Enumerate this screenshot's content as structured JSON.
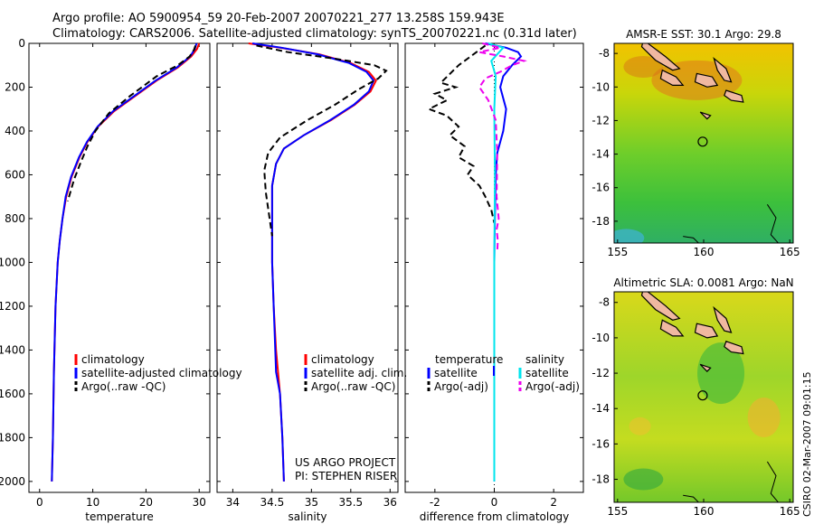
{
  "header": {
    "line1": "Argo profile: AO 5900954_59 20-Feb-2007 20070221_277 13.258S 159.943E",
    "line2": "Climatology: CARS2006. Satellite-adjusted climatology: synTS_20070221.nc (0.31d later)"
  },
  "stamp": "CSIRO 02-Mar-2007 09:01:15",
  "colors": {
    "clim": "#ff0000",
    "sat": "#0000ff",
    "argo": "#000000",
    "sal_sat": "#00e5ee",
    "sal_argo": "#ee00ee"
  },
  "chart_data": [
    {
      "type": "line",
      "name": "temperature",
      "xlabel": "temperature",
      "xlim": [
        -2,
        32
      ],
      "ylim": [
        0,
        2050
      ],
      "xticks": [
        "0",
        "10",
        "20",
        "30"
      ],
      "xtick_values": [
        0,
        10,
        20,
        30
      ],
      "yticks": [
        "0",
        "200",
        "400",
        "600",
        "800",
        "1000",
        "1200",
        "1400",
        "1600",
        "1800",
        "2000"
      ],
      "legend": [
        "climatology",
        "satellite-adjusted climatology",
        "Argo(..raw -QC)"
      ],
      "series": [
        {
          "name": "climatology",
          "style": "solid",
          "color": "#ff0000",
          "x": [
            30,
            29.6,
            28.5,
            26,
            22,
            18,
            14,
            11,
            9,
            7.5,
            6,
            5,
            4.3,
            3.8,
            3.4,
            3,
            2.7,
            2.5,
            2.3
          ],
          "y": [
            0,
            25,
            60,
            110,
            170,
            240,
            310,
            380,
            450,
            520,
            610,
            700,
            800,
            900,
            1000,
            1200,
            1500,
            1800,
            2000
          ]
        },
        {
          "name": "satellite-adjusted climatology",
          "style": "solid",
          "color": "#0000ff",
          "x": [
            29.5,
            29.2,
            28.3,
            25.8,
            21.8,
            17.8,
            13.8,
            10.9,
            8.9,
            7.4,
            5.9,
            4.9,
            4.3,
            3.8,
            3.4,
            3,
            2.7,
            2.5,
            2.3
          ],
          "y": [
            0,
            25,
            60,
            110,
            170,
            240,
            310,
            380,
            450,
            520,
            610,
            700,
            800,
            900,
            1000,
            1200,
            1500,
            1800,
            2000
          ]
        },
        {
          "name": "Argo(..raw -QC)",
          "style": "dashed",
          "color": "#000000",
          "x": [
            29.3,
            29,
            28.2,
            26,
            22,
            17,
            13,
            10.5,
            9,
            7.8,
            6.5,
            5.3
          ],
          "y": [
            10,
            30,
            60,
            100,
            150,
            240,
            320,
            400,
            470,
            540,
            620,
            720
          ]
        }
      ]
    },
    {
      "type": "line",
      "name": "salinity",
      "xlabel": "salinity",
      "xlim": [
        33.8,
        36.1
      ],
      "ylim": [
        0,
        2050
      ],
      "xticks": [
        "34",
        "34.5",
        "35",
        "35.5",
        "36"
      ],
      "xtick_values": [
        34,
        34.5,
        35,
        35.5,
        36
      ],
      "legend": [
        "climatology",
        "satellite adj. clim.",
        "Argo(..raw -QC)"
      ],
      "annotation": [
        "US ARGO PROJECT",
        "PI: STEPHEN RISER"
      ],
      "series": [
        {
          "name": "climatology",
          "style": "solid",
          "color": "#ff0000",
          "x": [
            34.2,
            34.6,
            35.1,
            35.5,
            35.73,
            35.82,
            35.75,
            35.55,
            35.25,
            34.9,
            34.65,
            34.55,
            34.5,
            34.5,
            34.5,
            34.52,
            34.55,
            34.6,
            34.63,
            34.65
          ],
          "y": [
            0,
            20,
            50,
            90,
            130,
            170,
            220,
            280,
            350,
            420,
            480,
            550,
            650,
            800,
            1000,
            1200,
            1400,
            1600,
            1800,
            2000
          ]
        },
        {
          "name": "satellite adj. clim.",
          "style": "solid",
          "color": "#0000ff",
          "x": [
            34.25,
            34.62,
            35.08,
            35.48,
            35.7,
            35.79,
            35.73,
            35.54,
            35.24,
            34.9,
            34.65,
            34.55,
            34.5,
            34.5,
            34.5,
            34.52,
            34.55,
            34.6,
            34.63,
            34.65
          ],
          "y": [
            0,
            20,
            50,
            90,
            130,
            170,
            220,
            280,
            350,
            420,
            480,
            550,
            650,
            800,
            1000,
            1200,
            1500,
            1600,
            1800,
            2000
          ]
        },
        {
          "name": "Argo(..raw -QC)",
          "style": "dashed",
          "color": "#000000",
          "x": [
            34.3,
            34.7,
            35.3,
            35.8,
            35.95,
            35.85,
            35.6,
            35.3,
            34.95,
            34.6,
            34.45,
            34.4,
            34.42,
            34.46,
            34.5
          ],
          "y": [
            10,
            40,
            70,
            100,
            125,
            160,
            210,
            280,
            350,
            430,
            500,
            580,
            680,
            780,
            880
          ]
        }
      ]
    },
    {
      "type": "line",
      "name": "difference",
      "xlabel": "difference from climatology",
      "xlim": [
        -3,
        3
      ],
      "ylim": [
        0,
        2050
      ],
      "xticks": [
        "-2",
        "0",
        "2"
      ],
      "xtick_values": [
        -2,
        0,
        2
      ],
      "legend_left_head": "temperature",
      "legend_right_head": "salinity",
      "legend_left": [
        "satellite",
        "Argo(-adj)"
      ],
      "legend_right": [
        "satellite",
        "Argo(-adj)"
      ],
      "series": [
        {
          "name": "temperature satellite",
          "style": "solid",
          "color": "#0000ff",
          "x": [
            -0.3,
            0.4,
            0.8,
            0.9,
            0.6,
            0.3,
            0.2,
            0.4,
            0.3,
            0.1,
            0.05,
            0.02,
            0,
            0,
            0
          ],
          "y": [
            0,
            20,
            40,
            60,
            100,
            150,
            200,
            300,
            400,
            500,
            600,
            800,
            1000,
            1500,
            2000
          ]
        },
        {
          "name": "temperature Argo(-adj)",
          "style": "dashed",
          "color": "#000000",
          "x": [
            -0.3,
            -0.6,
            -1.2,
            -1.5,
            -1.8,
            -1.3,
            -2.0,
            -1.6,
            -2.2,
            -1.6,
            -1.2,
            -1.5,
            -1.0,
            -1.2,
            -0.7,
            -0.9,
            -0.5,
            -0.3,
            -0.1,
            0
          ],
          "y": [
            10,
            40,
            100,
            140,
            180,
            200,
            230,
            260,
            300,
            330,
            380,
            420,
            470,
            520,
            560,
            600,
            650,
            700,
            760,
            820
          ]
        },
        {
          "name": "salinity satellite",
          "style": "solid",
          "color": "#00e5ee",
          "x": [
            -0.2,
            0.3,
            0.1,
            -0.1,
            0.05,
            0,
            0.02,
            0,
            0,
            0
          ],
          "y": [
            0,
            20,
            50,
            80,
            150,
            300,
            600,
            1000,
            1500,
            2000
          ]
        },
        {
          "name": "salinity Argo(-adj)",
          "style": "dashed",
          "color": "#ee00ee",
          "x": [
            -0.4,
            0.2,
            -0.5,
            0.3,
            1.0,
            0.6,
            0.2,
            -0.3,
            -0.5,
            -0.2,
            0.05,
            0.1,
            0.08,
            0.15,
            0.08,
            0.12,
            0.1
          ],
          "y": [
            0,
            20,
            40,
            60,
            80,
            100,
            130,
            160,
            200,
            260,
            350,
            500,
            700,
            800,
            850,
            900,
            950
          ]
        }
      ]
    },
    {
      "type": "heatmap",
      "name": "sst_map",
      "title": "AMSR-E SST: 30.1  Argo: 29.8",
      "xlim": [
        154.8,
        165.2
      ],
      "ylim": [
        -19.3,
        -7.4
      ],
      "xticks": [
        "155",
        "160",
        "165"
      ],
      "xtick_values": [
        155,
        160,
        165
      ],
      "yticks": [
        "-8",
        "-10",
        "-12",
        "-14",
        "-16",
        "-18"
      ],
      "ytick_values": [
        -8,
        -10,
        -12,
        -14,
        -16,
        -18
      ],
      "marker": {
        "lon": 159.943,
        "lat": -13.258
      }
    },
    {
      "type": "heatmap",
      "name": "sla_map",
      "title": "Altimetric SLA: 0.0081  Argo: NaN",
      "xlim": [
        154.8,
        165.2
      ],
      "ylim": [
        -19.3,
        -7.4
      ],
      "xticks": [
        "155",
        "160",
        "165"
      ],
      "xtick_values": [
        155,
        160,
        165
      ],
      "yticks": [
        "-8",
        "-10",
        "-12",
        "-14",
        "-16",
        "-18"
      ],
      "ytick_values": [
        -8,
        -10,
        -12,
        -14,
        -16,
        -18
      ],
      "marker": {
        "lon": 159.943,
        "lat": -13.258
      }
    }
  ]
}
